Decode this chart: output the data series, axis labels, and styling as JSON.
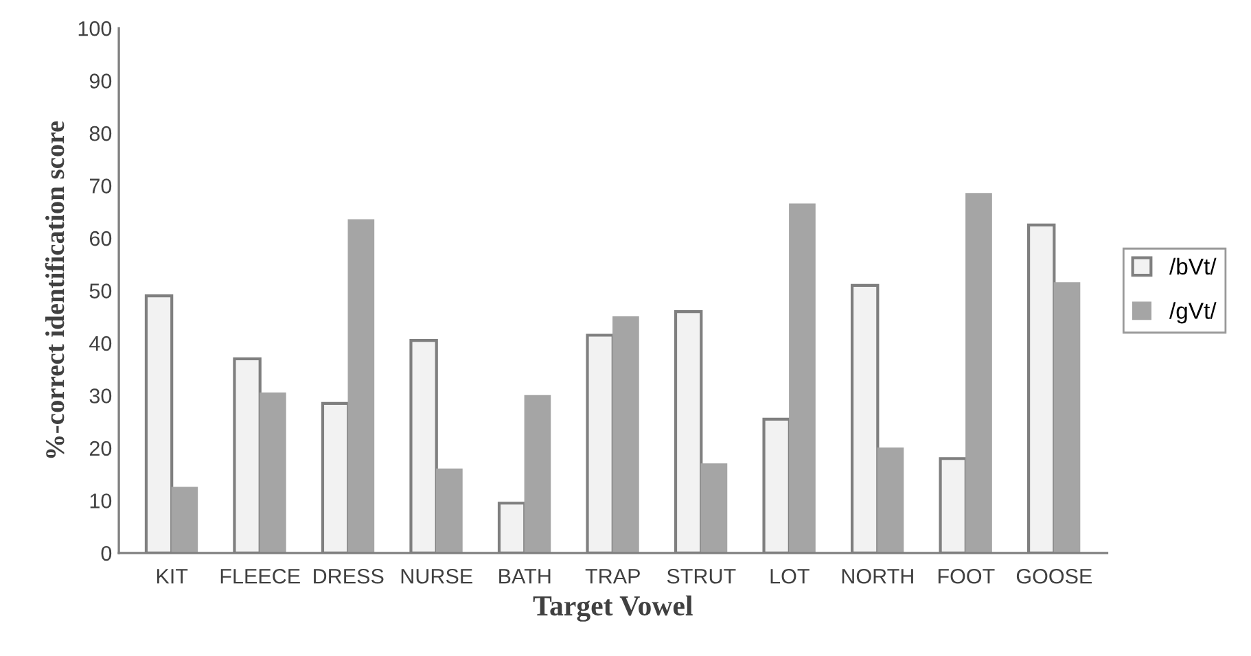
{
  "chart_data": {
    "type": "bar",
    "xlabel": "Target Vowel",
    "ylabel": "%-correct identification score",
    "categories": [
      "KIT",
      "FLEECE",
      "DRESS",
      "NURSE",
      "BATH",
      "TRAP",
      "STRUT",
      "LOT",
      "NORTH",
      "FOOT",
      "GOOSE"
    ],
    "series": [
      {
        "name": "/bVt/",
        "color": "#f2f2f2",
        "values": [
          49,
          37,
          28.5,
          40.5,
          9.5,
          41.5,
          46,
          25.5,
          51,
          18,
          62.5
        ]
      },
      {
        "name": "/gVt/",
        "color": "#a5a5a5",
        "values": [
          12.5,
          30.5,
          63.5,
          16,
          30,
          45,
          17,
          66.5,
          20,
          68.5,
          51.5
        ]
      }
    ],
    "ylim": [
      0,
      100
    ],
    "yticks": [
      0,
      10,
      20,
      30,
      40,
      50,
      60,
      70,
      80,
      90,
      100
    ],
    "grid": false,
    "legend": "right"
  }
}
